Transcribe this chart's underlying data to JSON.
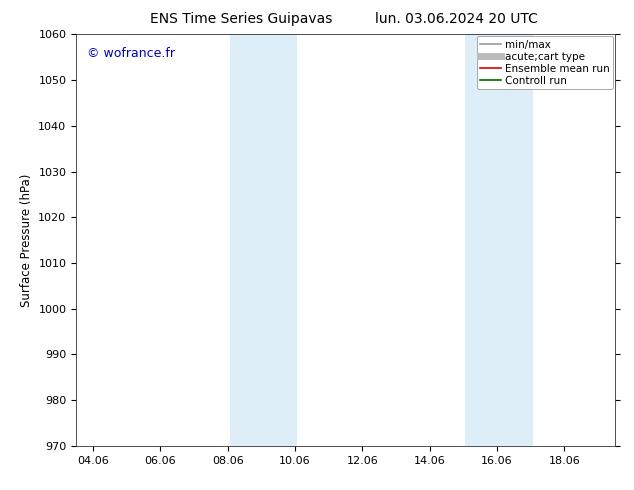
{
  "title_left": "ENS Time Series Guipavas",
  "title_right": "lun. 03.06.2024 20 UTC",
  "ylabel": "Surface Pressure (hPa)",
  "ylim": [
    970,
    1060
  ],
  "yticks": [
    970,
    980,
    990,
    1000,
    1010,
    1020,
    1030,
    1040,
    1050,
    1060
  ],
  "xlim_start": 3.5,
  "xlim_end": 19.5,
  "xtick_labels": [
    "04.06",
    "06.06",
    "08.06",
    "10.06",
    "12.06",
    "14.06",
    "16.06",
    "18.06"
  ],
  "xtick_positions": [
    4.0,
    6.0,
    8.0,
    10.0,
    12.0,
    14.0,
    16.0,
    18.0
  ],
  "shaded_bands": [
    {
      "xmin": 8.06,
      "xmax": 10.06
    },
    {
      "xmin": 15.06,
      "xmax": 17.06
    }
  ],
  "band_color": "#ddeef8",
  "watermark": "© wofrance.fr",
  "watermark_color": "#0000bb",
  "legend_items": [
    {
      "label": "min/max",
      "color": "#999999",
      "lw": 1.2
    },
    {
      "label": "acute;cart type",
      "color": "#bbbbbb",
      "lw": 5
    },
    {
      "label": "Ensemble mean run",
      "color": "#dd0000",
      "lw": 1.2
    },
    {
      "label": "Controll run",
      "color": "#006600",
      "lw": 1.2
    }
  ],
  "bg_color": "#ffffff",
  "title_fontsize": 10,
  "tick_fontsize": 8,
  "ylabel_fontsize": 8.5,
  "watermark_fontsize": 9,
  "legend_fontsize": 7.5
}
